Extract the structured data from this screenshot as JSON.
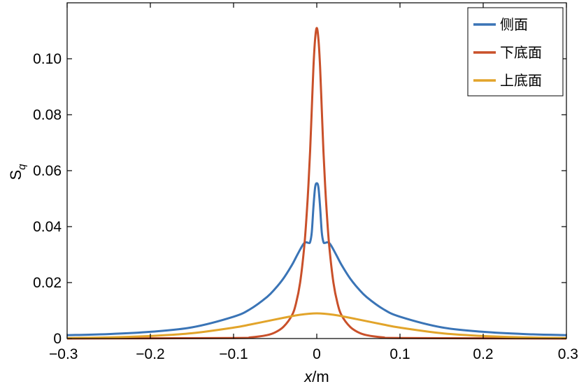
{
  "chart_data": {
    "type": "line",
    "title": "",
    "xlabel_italic": "x",
    "xlabel_unit": "/m",
    "ylabel_main": "S",
    "ylabel_sub": "q",
    "xlim": [
      -0.3,
      0.3
    ],
    "ylim": [
      0,
      0.12
    ],
    "x_ticks": [
      -0.3,
      -0.2,
      -0.1,
      0,
      0.1,
      0.2,
      0.3
    ],
    "x_tick_labels": [
      "−0.3",
      "−0.2",
      "−0.1",
      "0",
      "0.1",
      "0.2",
      "0.3"
    ],
    "y_ticks": [
      0,
      0.02,
      0.04,
      0.06,
      0.08,
      0.1
    ],
    "y_tick_labels": [
      "0",
      "0.02",
      "0.04",
      "0.06",
      "0.08",
      "0.10"
    ],
    "grid": false,
    "legend_position": "top-right",
    "series": [
      {
        "name": "侧面",
        "color": "#3a74b6",
        "x": [
          -0.3,
          -0.25,
          -0.2,
          -0.15,
          -0.1,
          -0.08,
          -0.06,
          -0.05,
          -0.04,
          -0.03,
          -0.025,
          -0.02,
          -0.016,
          -0.013,
          -0.01,
          -0.008,
          -0.006,
          -0.004,
          -0.002,
          0,
          0.002,
          0.004,
          0.006,
          0.008,
          0.01,
          0.013,
          0.016,
          0.02,
          0.025,
          0.03,
          0.04,
          0.05,
          0.06,
          0.08,
          0.1,
          0.15,
          0.2,
          0.25,
          0.3
        ],
        "y": [
          0.0012,
          0.0016,
          0.0024,
          0.004,
          0.0078,
          0.0105,
          0.0148,
          0.0178,
          0.0215,
          0.0262,
          0.029,
          0.0318,
          0.0338,
          0.0344,
          0.0342,
          0.0345,
          0.038,
          0.047,
          0.054,
          0.0555,
          0.054,
          0.047,
          0.038,
          0.0345,
          0.0342,
          0.0344,
          0.0338,
          0.0318,
          0.029,
          0.0262,
          0.0215,
          0.0178,
          0.0148,
          0.0105,
          0.0078,
          0.004,
          0.0024,
          0.0016,
          0.0012
        ]
      },
      {
        "name": "下底面",
        "color": "#c9502a",
        "x": [
          -0.3,
          -0.1,
          -0.08,
          -0.06,
          -0.05,
          -0.04,
          -0.03,
          -0.025,
          -0.02,
          -0.015,
          -0.012,
          -0.01,
          -0.008,
          -0.006,
          -0.004,
          -0.002,
          0,
          0.002,
          0.004,
          0.006,
          0.008,
          0.01,
          0.012,
          0.015,
          0.02,
          0.025,
          0.03,
          0.04,
          0.05,
          0.06,
          0.08,
          0.1,
          0.3
        ],
        "y": [
          0,
          0.0002,
          0.0004,
          0.0012,
          0.0022,
          0.0042,
          0.0082,
          0.0125,
          0.02,
          0.033,
          0.045,
          0.055,
          0.067,
          0.082,
          0.097,
          0.107,
          0.111,
          0.107,
          0.097,
          0.082,
          0.067,
          0.055,
          0.045,
          0.033,
          0.02,
          0.0125,
          0.0082,
          0.0042,
          0.0022,
          0.0012,
          0.0004,
          0.0002,
          0
        ]
      },
      {
        "name": "上底面",
        "color": "#e2a42a",
        "x": [
          -0.3,
          -0.25,
          -0.2,
          -0.15,
          -0.1,
          -0.08,
          -0.06,
          -0.04,
          -0.02,
          0,
          0.02,
          0.04,
          0.06,
          0.08,
          0.1,
          0.15,
          0.2,
          0.25,
          0.3
        ],
        "y": [
          0.0002,
          0.0004,
          0.0009,
          0.0019,
          0.0039,
          0.005,
          0.0062,
          0.0074,
          0.0085,
          0.009,
          0.0085,
          0.0074,
          0.0062,
          0.005,
          0.0039,
          0.0019,
          0.0009,
          0.0004,
          0.0002
        ]
      }
    ]
  }
}
